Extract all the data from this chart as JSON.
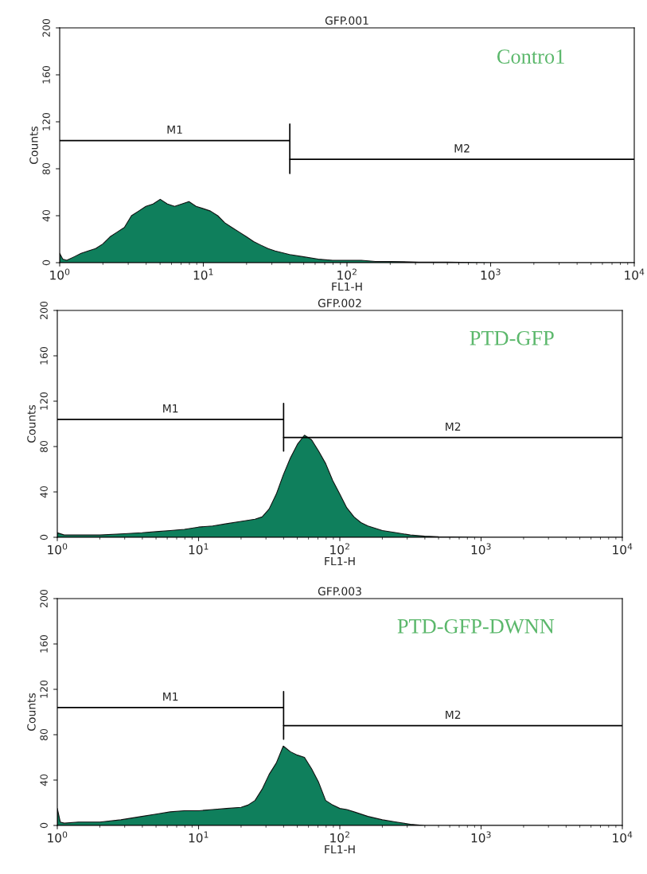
{
  "chart_data": [
    {
      "type": "area",
      "title": "GFP.001",
      "xlabel": "FL1-H",
      "ylabel": "Counts",
      "log": "x",
      "xlim": [
        1,
        10000
      ],
      "xticks": [
        {
          "value": 1,
          "label": "10$^{0}$"
        },
        {
          "value": 10,
          "label": "10$^{1}$"
        },
        {
          "value": 100,
          "label": "10$^{2}$"
        },
        {
          "value": 1000,
          "label": "10$^{3}$"
        },
        {
          "value": 10000,
          "label": "10$^{4}$"
        }
      ],
      "ylim": [
        0,
        200
      ],
      "yticks": [
        0,
        40,
        80,
        120,
        160,
        200
      ],
      "grid": false,
      "annotations": [
        "Contro1"
      ],
      "series": [
        {
          "color": "#0f7f5c",
          "x": [
            1,
            1.05,
            1.12,
            1.26,
            1.41,
            1.58,
            1.78,
            2,
            2.24,
            2.51,
            2.82,
            3.16,
            3.55,
            3.98,
            4.47,
            5.01,
            5.62,
            6.31,
            7.08,
            7.94,
            8.91,
            10,
            11.2,
            12.6,
            14.1,
            15.8,
            17.8,
            20,
            22.4,
            25.1,
            28.2,
            31.6,
            39.8,
            50.1,
            63.1,
            79.4,
            100,
            126,
            158,
            200,
            316,
            501,
            1000,
            3162,
            10000
          ],
          "values": [
            8,
            3,
            2,
            5,
            8,
            10,
            12,
            16,
            22,
            26,
            30,
            40,
            44,
            48,
            50,
            54,
            50,
            48,
            50,
            52,
            48,
            46,
            44,
            40,
            34,
            30,
            26,
            22,
            18,
            15,
            12,
            10,
            7,
            5,
            3,
            2,
            2,
            2,
            1,
            1,
            0.5,
            0.5,
            0,
            0,
            0
          ]
        },
        {
          "type": "line",
          "name": "M1",
          "color": "#000000",
          "x": [
            1,
            40,
            40,
            40
          ],
          "values": [
            104,
            104,
            118,
            76
          ]
        },
        {
          "type": "line",
          "name": "M2",
          "color": "#000000",
          "x": [
            40,
            10000
          ],
          "values": [
            88,
            88
          ]
        }
      ]
    },
    {
      "type": "area",
      "title": "GFP.002",
      "xlabel": "FL1-H",
      "ylabel": "Counts",
      "log": "x",
      "xlim": [
        1,
        10000
      ],
      "xticks": [
        {
          "value": 1,
          "label": "10$^{0}$"
        },
        {
          "value": 10,
          "label": "10$^{1}$"
        },
        {
          "value": 100,
          "label": "10$^{2}$"
        },
        {
          "value": 1000,
          "label": "10$^{3}$"
        },
        {
          "value": 10000,
          "label": "10$^{4}$"
        }
      ],
      "ylim": [
        0,
        200
      ],
      "yticks": [
        0,
        40,
        80,
        120,
        160,
        200
      ],
      "grid": false,
      "annotations": [
        "PTD-GFP"
      ],
      "series": [
        {
          "color": "#0f7f5c",
          "x": [
            1,
            1.12,
            1.41,
            2,
            2.82,
            3.98,
            5.01,
            6.31,
            7.94,
            10,
            12.6,
            15.8,
            20,
            25.1,
            28.2,
            31.6,
            35.5,
            39.8,
            44.7,
            50.1,
            56.2,
            63.1,
            70.8,
            79.4,
            89.1,
            100,
            112,
            126,
            141,
            158,
            200,
            251,
            316,
            398,
            501,
            1000,
            10000
          ],
          "values": [
            4,
            2,
            2,
            2,
            3,
            4,
            5,
            6,
            7,
            9,
            10,
            12,
            14,
            16,
            18,
            25,
            38,
            55,
            70,
            82,
            90,
            86,
            76,
            65,
            50,
            38,
            26,
            18,
            13,
            10,
            6,
            4,
            2,
            1,
            0.5,
            0,
            0
          ]
        },
        {
          "type": "line",
          "name": "M1",
          "color": "#000000",
          "x": [
            1,
            40,
            40,
            40
          ],
          "values": [
            104,
            104,
            118,
            76
          ]
        },
        {
          "type": "line",
          "name": "M2",
          "color": "#000000",
          "x": [
            40,
            10000
          ],
          "values": [
            88,
            88
          ]
        }
      ]
    },
    {
      "type": "area",
      "title": "GFP.003",
      "xlabel": "FL1-H",
      "ylabel": "Counts",
      "log": "x",
      "xlim": [
        1,
        10000
      ],
      "xticks": [
        {
          "value": 1,
          "label": "10$^{0}$"
        },
        {
          "value": 10,
          "label": "10$^{1}$"
        },
        {
          "value": 100,
          "label": "10$^{2}$"
        },
        {
          "value": 1000,
          "label": "10$^{3}$"
        },
        {
          "value": 10000,
          "label": "10$^{4}$"
        }
      ],
      "ylim": [
        0,
        200
      ],
      "yticks": [
        0,
        40,
        80,
        120,
        160,
        200
      ],
      "grid": false,
      "annotations": [
        "PTD-GFP-DWNN"
      ],
      "series": [
        {
          "color": "#0f7f5c",
          "x": [
            1,
            1.05,
            1.12,
            1.41,
            2,
            2.82,
            3.98,
            5.01,
            6.31,
            7.94,
            10,
            12.6,
            15.8,
            20,
            22.4,
            25.1,
            28.2,
            31.6,
            35.5,
            39.8,
            44.7,
            50.1,
            56.2,
            63.1,
            70.8,
            79.4,
            89.1,
            100,
            112,
            126,
            158,
            200,
            251,
            316,
            398,
            1000,
            10000
          ],
          "values": [
            15,
            3,
            2,
            3,
            3,
            5,
            8,
            10,
            12,
            13,
            13,
            14,
            15,
            16,
            18,
            22,
            32,
            45,
            55,
            70,
            65,
            62,
            60,
            50,
            38,
            22,
            18,
            15,
            14,
            12,
            8,
            5,
            3,
            1,
            0,
            0,
            0
          ]
        },
        {
          "type": "line",
          "name": "M1",
          "color": "#000000",
          "x": [
            1,
            40,
            40,
            40
          ],
          "values": [
            104,
            104,
            118,
            76
          ]
        },
        {
          "type": "line",
          "name": "M2",
          "color": "#000000",
          "x": [
            40,
            10000
          ],
          "values": [
            88,
            88
          ]
        }
      ]
    }
  ]
}
